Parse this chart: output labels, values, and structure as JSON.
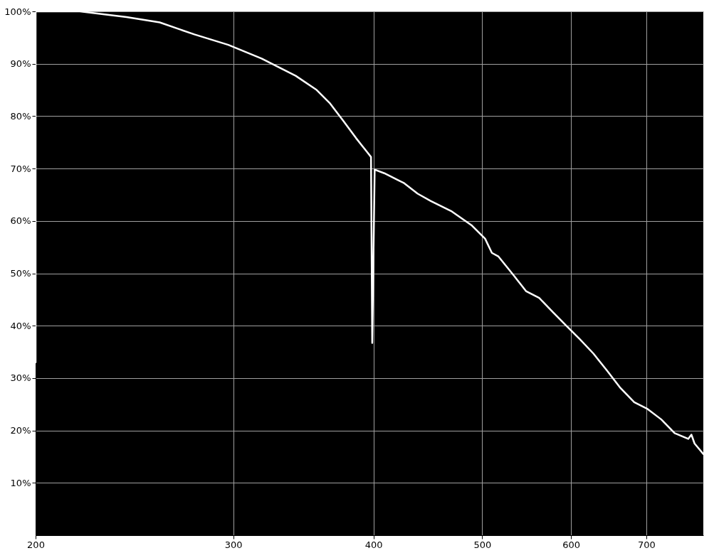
{
  "chart_data": {
    "type": "line",
    "log": "x",
    "grid": true,
    "marker": "none",
    "line_style": "solid",
    "xlim": [
      200,
      787
    ],
    "xticks": [
      200,
      300,
      400,
      500,
      600,
      700
    ],
    "ylim": [
      0,
      100
    ],
    "yticks": [
      {
        "value": 10,
        "label": "10%"
      },
      {
        "value": 20,
        "label": "20%"
      },
      {
        "value": 30,
        "label": "30%"
      },
      {
        "value": 40,
        "label": "40%"
      },
      {
        "value": 50,
        "label": "50%"
      },
      {
        "value": 60,
        "label": "60%"
      },
      {
        "value": 70,
        "label": "70%"
      },
      {
        "value": 80,
        "label": "80%"
      },
      {
        "value": 90,
        "label": "90%"
      },
      {
        "value": 100,
        "label": "100%"
      }
    ],
    "series": [
      {
        "color": "#ffffff",
        "x": [
          200,
          200,
          219,
          241,
          258,
          277,
          297,
          318,
          341,
          356,
          366,
          376,
          386,
          395,
          398,
          399,
          401,
          409,
          426,
          438,
          450,
          469,
          489,
          503,
          510,
          517,
          532,
          547,
          562,
          578,
          594,
          611,
          628,
          646,
          664,
          683,
          702,
          722,
          742,
          763,
          768,
          773,
          787
        ],
        "values": [
          33,
          100,
          100,
          98.9,
          97.9,
          95.6,
          93.6,
          91.0,
          87.7,
          85.0,
          82.4,
          79.1,
          75.8,
          73.1,
          72.2,
          36.7,
          69.8,
          69.1,
          67.2,
          65.2,
          63.8,
          61.9,
          59.2,
          56.6,
          53.9,
          53.2,
          49.9,
          46.6,
          45.3,
          42.6,
          40.0,
          37.4,
          34.7,
          31.4,
          28.1,
          25.4,
          24.1,
          22.1,
          19.5,
          18.4,
          19.2,
          17.5,
          15.5
        ]
      }
    ]
  }
}
